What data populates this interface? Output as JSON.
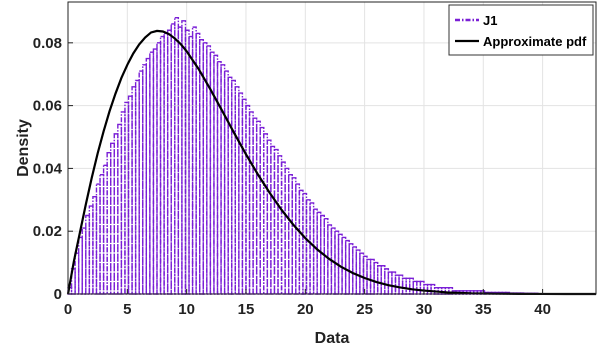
{
  "chart_data": {
    "type": "bar",
    "xlabel": "Data",
    "ylabel": "Density",
    "xlim": [
      0,
      44.5
    ],
    "ylim": [
      0,
      0.093
    ],
    "xticks": [
      0,
      5,
      10,
      15,
      20,
      25,
      30,
      35,
      40
    ],
    "yticks": [
      0,
      0.02,
      0.04,
      0.06,
      0.08
    ],
    "ytick_labels": [
      "0",
      "0.02",
      "0.04",
      "0.06",
      "0.08"
    ],
    "grid": true,
    "legend_position": "top-right",
    "series": [
      {
        "name": "J1",
        "type": "histogram",
        "bin_width": 0.3,
        "color": "#7a1fd6",
        "edges_start": 0.0,
        "values": [
          0.002,
          0.008,
          0.013,
          0.018,
          0.021,
          0.025,
          0.028,
          0.031,
          0.035,
          0.038,
          0.041,
          0.045,
          0.048,
          0.051,
          0.054,
          0.058,
          0.061,
          0.063,
          0.066,
          0.068,
          0.071,
          0.073,
          0.075,
          0.077,
          0.078,
          0.08,
          0.082,
          0.083,
          0.084,
          0.086,
          0.088,
          0.085,
          0.087,
          0.084,
          0.082,
          0.085,
          0.083,
          0.081,
          0.08,
          0.079,
          0.077,
          0.076,
          0.074,
          0.073,
          0.071,
          0.069,
          0.068,
          0.066,
          0.064,
          0.062,
          0.06,
          0.058,
          0.056,
          0.055,
          0.053,
          0.051,
          0.049,
          0.047,
          0.046,
          0.044,
          0.042,
          0.04,
          0.038,
          0.037,
          0.035,
          0.033,
          0.032,
          0.03,
          0.029,
          0.027,
          0.026,
          0.025,
          0.024,
          0.022,
          0.021,
          0.02,
          0.019,
          0.018,
          0.017,
          0.016,
          0.015,
          0.014,
          0.013,
          0.012,
          0.011,
          0.011,
          0.01,
          0.009,
          0.009,
          0.008,
          0.007,
          0.007,
          0.006,
          0.006,
          0.005,
          0.005,
          0.005,
          0.004,
          0.004,
          0.004,
          0.003,
          0.003,
          0.003,
          0.002,
          0.002,
          0.002,
          0.002,
          0.002,
          0.001,
          0.001,
          0.001,
          0.001,
          0.001,
          0.001,
          0.001,
          0.001,
          0.001,
          0.0005,
          0.0005,
          0.0005,
          0.0005,
          0.0005,
          0.0005,
          0.0005,
          0.0003,
          0.0003,
          0.0003,
          0.0003,
          0.0002,
          0.0002,
          0.0002,
          0.0002,
          0.0001,
          0.0001,
          0.0001,
          0.0001,
          0.0001,
          0.0001,
          0.0001,
          0.0001,
          0.0001,
          0.0001,
          0.0001,
          0.0001,
          0.0001,
          0.0001
        ]
      },
      {
        "name": "Approximate pdf",
        "type": "line",
        "color": "#000000",
        "x": [
          0,
          0.5,
          1,
          1.5,
          2,
          2.5,
          3,
          3.5,
          4,
          4.5,
          5,
          5.5,
          6,
          6.5,
          7,
          7.5,
          8,
          8.5,
          9,
          9.5,
          10,
          11,
          12,
          13,
          14,
          15,
          16,
          17,
          18,
          19,
          20,
          21,
          22,
          23,
          24,
          25,
          26,
          27,
          28,
          29,
          30,
          32,
          34,
          36,
          38,
          40,
          42,
          44.5
        ],
        "y": [
          0,
          0.0105,
          0.0195,
          0.0285,
          0.037,
          0.0448,
          0.0518,
          0.0582,
          0.0638,
          0.0688,
          0.073,
          0.0766,
          0.0795,
          0.0817,
          0.0833,
          0.0838,
          0.0836,
          0.0828,
          0.0814,
          0.0796,
          0.0773,
          0.0717,
          0.0652,
          0.0583,
          0.0513,
          0.0445,
          0.0381,
          0.0322,
          0.0268,
          0.022,
          0.0178,
          0.0142,
          0.0112,
          0.0087,
          0.0067,
          0.0051,
          0.0038,
          0.0028,
          0.0021,
          0.0015,
          0.0011,
          0.0005,
          0.0002,
          0.0001,
          5e-05,
          2e-05,
          1e-05,
          0
        ]
      }
    ]
  },
  "legend": {
    "items": [
      {
        "label": "J1",
        "color": "#7a1fd6",
        "style": "dashed"
      },
      {
        "label": "Approximate pdf",
        "color": "#000000",
        "style": "solid"
      }
    ]
  }
}
